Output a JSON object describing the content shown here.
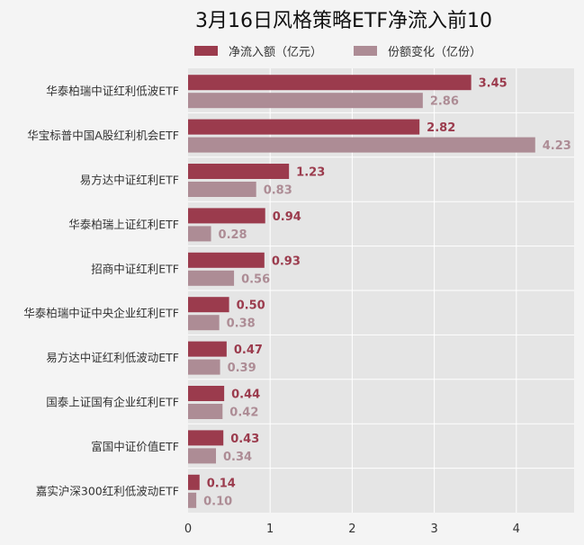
{
  "chart_data": {
    "type": "bar",
    "orientation": "horizontal",
    "title": "3月16日风格策略ETF净流入前10",
    "categories": [
      "华泰柏瑞中证红利低波ETF",
      "华宝标普中国A股红利机会ETF",
      "易方达中证红利ETF",
      "华泰柏瑞上证红利ETF",
      "招商中证红利ETF",
      "华泰柏瑞中证中央企业红利ETF",
      "易方达中证红利低波动ETF",
      "国泰上证国有企业红利ETF",
      "富国中证价值ETF",
      "嘉实沪深300红利低波动ETF"
    ],
    "series": [
      {
        "name": "净流入额（亿元）",
        "color": "#9b3b4d",
        "label_color": "#9b3b4d",
        "values": [
          3.45,
          2.82,
          1.23,
          0.94,
          0.93,
          0.5,
          0.47,
          0.44,
          0.43,
          0.14
        ],
        "labels": [
          "3.45",
          "2.82",
          "1.23",
          "0.94",
          "0.93",
          "0.50",
          "0.47",
          "0.44",
          "0.43",
          "0.14"
        ]
      },
      {
        "name": "份额变化（亿份）",
        "color": "#ad8c95",
        "label_color": "#ad8c95",
        "values": [
          2.86,
          4.23,
          0.83,
          0.28,
          0.56,
          0.38,
          0.39,
          0.42,
          0.34,
          0.1
        ],
        "labels": [
          "2.86",
          "4.23",
          "0.83",
          "0.28",
          "0.56",
          "0.38",
          "0.39",
          "0.42",
          "0.34",
          "0.10"
        ]
      }
    ],
    "xlim": [
      0,
      4.7
    ],
    "xticks": [
      "0",
      "1",
      "2",
      "3",
      "4"
    ],
    "grid": true,
    "legend_position": "top"
  },
  "colors": {
    "background": "#f4f4f4",
    "plot_background": "#e5e5e5",
    "grid": "#ffffff",
    "text": "#333333",
    "title": "#111111"
  }
}
